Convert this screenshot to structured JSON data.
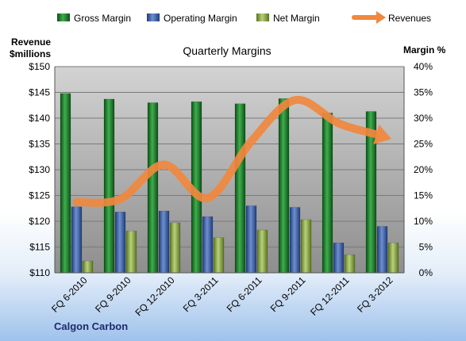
{
  "chart_data": {
    "type": "bar",
    "title": "Quarterly Margins",
    "company": "Calgon Carbon",
    "y_left_label": [
      "Revenue",
      "$millions"
    ],
    "y_right_label": "Margin %",
    "y_left_range": [
      110,
      150
    ],
    "y_left_ticks": [
      "$110",
      "$115",
      "$120",
      "$125",
      "$130",
      "$135",
      "$140",
      "$145",
      "$150"
    ],
    "y_right_range": [
      0,
      40
    ],
    "y_right_ticks": [
      "0%",
      "5%",
      "10%",
      "15%",
      "20%",
      "25%",
      "30%",
      "35%",
      "40%"
    ],
    "categories": [
      "FQ 6-2010",
      "FQ 9-2010",
      "FQ 12-2010",
      "FQ 3-2011",
      "FQ 6-2011",
      "FQ 9-2011",
      "FQ 12-2011",
      "FQ 3-2012"
    ],
    "legend_position": "top",
    "grid": true,
    "series": [
      {
        "name": "Gross Margin",
        "type": "bar",
        "axis": "right",
        "color": "#2e8b3a",
        "values": [
          34.8,
          33.7,
          33.0,
          33.2,
          32.8,
          33.8,
          31.0,
          31.3
        ]
      },
      {
        "name": "Operating Margin",
        "type": "bar",
        "axis": "right",
        "color": "#4a6fb5",
        "values": [
          12.8,
          11.8,
          12.0,
          10.9,
          13.0,
          12.7,
          5.8,
          9.0
        ]
      },
      {
        "name": "Net Margin",
        "type": "bar",
        "axis": "right",
        "color": "#9bbb59",
        "values": [
          2.3,
          8.1,
          9.7,
          6.8,
          8.3,
          10.3,
          3.5,
          5.8
        ]
      },
      {
        "name": "Revenues",
        "type": "line",
        "axis": "left",
        "color": "#f0883e",
        "values": [
          123.7,
          124.3,
          131.0,
          124.5,
          135.5,
          143.5,
          139.0,
          136.5
        ]
      }
    ]
  }
}
